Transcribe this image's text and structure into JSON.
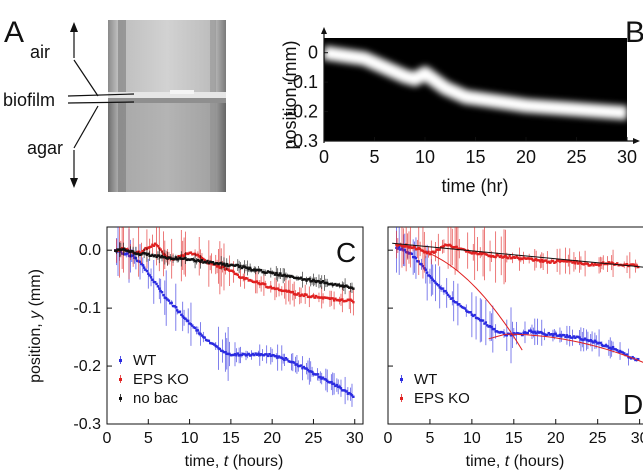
{
  "panels": {
    "A": {
      "letter": "A",
      "labels": [
        "air",
        "biofilm",
        "agar"
      ]
    },
    "B": {
      "letter": "B",
      "xlabel": "time (hr)",
      "ylabel": "position (mm)"
    },
    "C": {
      "letter": "C"
    },
    "D": {
      "letter": "D"
    }
  },
  "chart_data": [
    {
      "panel": "B",
      "type": "heatmap",
      "title": "",
      "xlabel": "time (hr)",
      "ylabel": "position (mm)",
      "xlim": [
        0,
        30
      ],
      "ylim": [
        -0.3,
        0.05
      ],
      "xticks": [
        "0",
        "5",
        "10",
        "15",
        "20",
        "25",
        "30"
      ],
      "yticks": [
        "0",
        "-0.1",
        "-0.2",
        "-0.3"
      ],
      "background_color": "#000000",
      "band_color": "#ffffff",
      "band_center": {
        "x": [
          0,
          2,
          4,
          6,
          8,
          9,
          10,
          12,
          14,
          16,
          18,
          20,
          22,
          24,
          26,
          28,
          30
        ],
        "y": [
          0.0,
          -0.01,
          -0.02,
          -0.05,
          -0.08,
          -0.09,
          -0.07,
          -0.12,
          -0.15,
          -0.16,
          -0.17,
          -0.18,
          -0.185,
          -0.19,
          -0.195,
          -0.2,
          -0.205
        ]
      }
    },
    {
      "panel": "C",
      "type": "scatter",
      "title": "",
      "xlabel": "time, t (hours)",
      "ylabel": "position, y (mm)",
      "xlim": [
        0,
        31
      ],
      "ylim": [
        -0.3,
        0.04
      ],
      "xticks": [
        "0",
        "5",
        "10",
        "15",
        "20",
        "25",
        "30"
      ],
      "yticks": [
        "0.0",
        "-0.1",
        "-0.2",
        "-0.3"
      ],
      "legend": "bottom-left",
      "series": [
        {
          "name": "WT",
          "color": "#2a2ae0",
          "x": [
            1,
            2,
            3,
            4,
            5,
            6,
            7,
            8,
            9,
            10,
            11,
            12,
            13,
            14,
            15,
            16,
            17,
            18,
            19,
            20,
            21,
            22,
            23,
            24,
            25,
            26,
            27,
            28,
            29,
            30
          ],
          "y": [
            0.0,
            -0.005,
            -0.01,
            -0.02,
            -0.04,
            -0.06,
            -0.08,
            -0.095,
            -0.11,
            -0.125,
            -0.14,
            -0.155,
            -0.165,
            -0.175,
            -0.18,
            -0.18,
            -0.18,
            -0.18,
            -0.18,
            -0.182,
            -0.185,
            -0.19,
            -0.197,
            -0.205,
            -0.212,
            -0.22,
            -0.228,
            -0.235,
            -0.245,
            -0.255
          ]
        },
        {
          "name": "EPS KO",
          "color": "#e02020",
          "x": [
            1,
            2,
            3,
            4,
            5,
            6,
            7,
            8,
            9,
            10,
            11,
            12,
            13,
            14,
            15,
            16,
            17,
            18,
            19,
            20,
            21,
            22,
            23,
            24,
            25,
            26,
            27,
            28,
            29,
            30
          ],
          "y": [
            0.0,
            0.002,
            -0.002,
            -0.005,
            0.005,
            0.01,
            -0.01,
            -0.015,
            -0.01,
            -0.005,
            -0.01,
            -0.02,
            -0.025,
            -0.03,
            -0.035,
            -0.045,
            -0.05,
            -0.055,
            -0.06,
            -0.065,
            -0.068,
            -0.072,
            -0.076,
            -0.078,
            -0.08,
            -0.082,
            -0.085,
            -0.085,
            -0.087,
            -0.088
          ]
        },
        {
          "name": "no bac",
          "color": "#111111",
          "x": [
            1,
            2,
            3,
            4,
            5,
            6,
            7,
            8,
            9,
            10,
            11,
            12,
            13,
            14,
            15,
            16,
            17,
            18,
            19,
            20,
            21,
            22,
            23,
            24,
            25,
            26,
            27,
            28,
            29,
            30
          ],
          "y": [
            0.0,
            0.0,
            -0.003,
            -0.006,
            -0.008,
            -0.01,
            -0.012,
            -0.014,
            -0.015,
            -0.016,
            -0.018,
            -0.02,
            -0.022,
            -0.024,
            -0.026,
            -0.028,
            -0.031,
            -0.034,
            -0.037,
            -0.04,
            -0.042,
            -0.045,
            -0.048,
            -0.05,
            -0.053,
            -0.055,
            -0.058,
            -0.06,
            -0.063,
            -0.066
          ]
        }
      ]
    },
    {
      "panel": "D",
      "type": "scatter",
      "title": "",
      "xlabel": "time, t (hours)",
      "ylabel": "",
      "xlim": [
        0,
        31
      ],
      "ylim": [
        -0.3,
        0.04
      ],
      "xticks": [
        "0",
        "5",
        "10",
        "15",
        "20",
        "25",
        "30"
      ],
      "legend": "bottom-left",
      "series": [
        {
          "name": "WT",
          "color": "#2a2ae0",
          "x": [
            1,
            2,
            3,
            4,
            5,
            6,
            7,
            8,
            9,
            10,
            11,
            12,
            13,
            14,
            15,
            16,
            17,
            18,
            19,
            20,
            21,
            22,
            23,
            24,
            25,
            26,
            27,
            28,
            29,
            30
          ],
          "y": [
            0.005,
            0.0,
            -0.01,
            -0.025,
            -0.045,
            -0.06,
            -0.075,
            -0.09,
            -0.1,
            -0.11,
            -0.12,
            -0.13,
            -0.14,
            -0.145,
            -0.145,
            -0.145,
            -0.14,
            -0.143,
            -0.145,
            -0.146,
            -0.148,
            -0.15,
            -0.152,
            -0.155,
            -0.16,
            -0.165,
            -0.17,
            -0.178,
            -0.185,
            -0.19
          ]
        },
        {
          "name": "EPS KO",
          "color": "#e02020",
          "x": [
            1,
            2,
            3,
            4,
            5,
            6,
            7,
            8,
            9,
            10,
            11,
            12,
            13,
            14,
            15,
            16,
            17,
            18,
            19,
            20,
            21,
            22,
            23,
            24,
            25,
            26,
            27,
            28,
            29,
            30
          ],
          "y": [
            0.01,
            0.008,
            0.005,
            0.0,
            -0.005,
            0.0,
            0.01,
            0.005,
            0.0,
            -0.005,
            -0.005,
            -0.01,
            -0.01,
            -0.012,
            -0.012,
            -0.015,
            -0.015,
            -0.018,
            -0.02,
            -0.02,
            -0.018,
            -0.02,
            -0.022,
            -0.025,
            -0.025,
            -0.022,
            -0.024,
            -0.026,
            -0.025,
            -0.028
          ]
        }
      ]
    }
  ]
}
